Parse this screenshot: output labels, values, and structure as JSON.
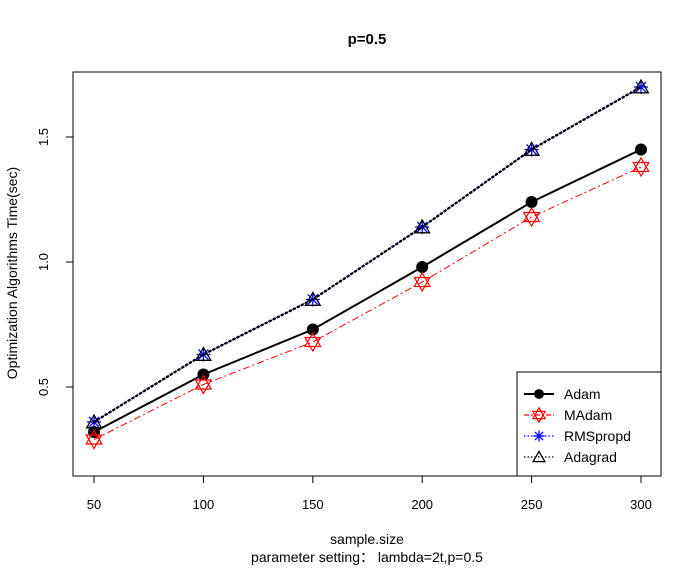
{
  "chart_data": {
    "type": "line",
    "title": "p=0.5",
    "xlabel": "sample.size",
    "subtitle": "parameter setting：  lambda=2t,p=0.5",
    "ylabel": "Optimization Algorithms Time(sec)",
    "x": [
      50,
      100,
      150,
      200,
      250,
      300
    ],
    "xlim": [
      50,
      300
    ],
    "ylim": [
      0.5,
      1.5
    ],
    "x_ticks": [
      "50",
      "100",
      "150",
      "200",
      "250",
      "300"
    ],
    "y_ticks": [
      "0.5",
      "1.0",
      "1.5"
    ],
    "grid": false,
    "legend_position": "bottom-right",
    "series": [
      {
        "name": "Adam",
        "values": [
          0.32,
          0.55,
          0.73,
          0.98,
          1.24,
          1.45
        ],
        "color": "#000000",
        "line": "solid",
        "marker": "filled-circle"
      },
      {
        "name": "MAdam",
        "values": [
          0.29,
          0.51,
          0.68,
          0.92,
          1.18,
          1.38
        ],
        "color": "#ff0000",
        "line": "dashdot",
        "marker": "star-of-david"
      },
      {
        "name": "RMSpropd",
        "values": [
          0.36,
          0.63,
          0.85,
          1.14,
          1.45,
          1.7
        ],
        "color": "#0000ff",
        "line": "dotted",
        "marker": "asterisk"
      },
      {
        "name": "Adagrad",
        "values": [
          0.36,
          0.63,
          0.85,
          1.14,
          1.45,
          1.7
        ],
        "color": "#000000",
        "line": "dotted",
        "marker": "triangle"
      }
    ]
  }
}
